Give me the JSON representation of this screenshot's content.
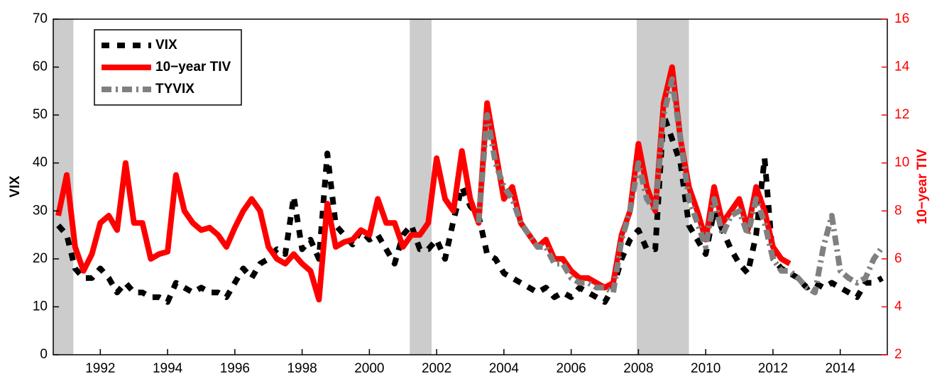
{
  "chart_data": {
    "type": "line",
    "ylabel": "VIX",
    "y2label": "10−year TIV",
    "x": [
      1990.75,
      1991,
      1991.25,
      1991.5,
      1991.75,
      1992,
      1992.25,
      1992.5,
      1992.75,
      1993,
      1993.25,
      1993.5,
      1993.75,
      1994,
      1994.25,
      1994.5,
      1994.75,
      1995,
      1995.25,
      1995.5,
      1995.75,
      1996,
      1996.25,
      1996.5,
      1996.75,
      1997,
      1997.25,
      1997.5,
      1997.75,
      1998,
      1998.25,
      1998.5,
      1998.75,
      1999,
      1999.25,
      1999.5,
      1999.75,
      2000,
      2000.25,
      2000.5,
      2000.75,
      2001,
      2001.25,
      2001.5,
      2001.75,
      2002,
      2002.25,
      2002.5,
      2002.75,
      2003,
      2003.25,
      2003.5,
      2003.75,
      2004,
      2004.25,
      2004.5,
      2004.75,
      2005,
      2005.25,
      2005.5,
      2005.75,
      2006,
      2006.25,
      2006.5,
      2006.75,
      2007,
      2007.25,
      2007.5,
      2007.75,
      2008,
      2008.25,
      2008.5,
      2008.75,
      2009,
      2009.25,
      2009.5,
      2009.75,
      2010,
      2010.25,
      2010.5,
      2010.75,
      2011,
      2011.25,
      2011.5,
      2011.75,
      2012,
      2012.25,
      2012.5,
      2012.75,
      2013,
      2013.25,
      2013.5,
      2013.75,
      2014,
      2014.25,
      2014.5,
      2014.75,
      2015,
      2015.25
    ],
    "series": [
      {
        "name": "VIX",
        "color": "#000000",
        "style": "dashed",
        "axis": "y",
        "values": [
          27,
          25,
          18,
          16,
          16,
          18,
          16,
          13,
          15,
          13,
          13,
          12,
          12,
          11,
          15,
          14,
          13,
          14,
          13,
          13,
          12,
          15,
          18,
          16,
          19,
          20,
          22,
          21,
          33,
          22,
          24,
          20,
          42,
          27,
          25,
          23,
          26,
          24,
          25,
          22,
          19,
          25,
          27,
          22,
          22,
          24,
          20,
          28,
          35,
          31,
          29,
          21,
          20,
          17,
          16,
          15,
          14,
          13,
          14,
          12,
          13,
          12,
          14,
          13,
          12,
          11,
          14,
          20,
          24,
          26,
          22,
          22,
          50,
          45,
          40,
          27,
          24,
          21,
          30,
          26,
          22,
          19,
          17,
          25,
          41,
          20,
          18,
          17,
          16,
          14,
          15,
          14,
          15,
          14,
          13,
          12,
          15,
          15,
          16
        ]
      },
      {
        "name": "10−year TIV",
        "color": "#ff0000",
        "style": "solid",
        "axis": "y2",
        "values": [
          7.8,
          9.5,
          6.5,
          5.5,
          6.2,
          7.5,
          7.8,
          7.2,
          10.0,
          7.5,
          7.5,
          6.0,
          6.2,
          6.3,
          9.5,
          8.0,
          7.5,
          7.2,
          7.3,
          7.0,
          6.5,
          7.3,
          8.0,
          8.5,
          8.0,
          6.5,
          6.0,
          5.8,
          6.2,
          5.8,
          5.5,
          4.3,
          8.3,
          6.5,
          6.7,
          6.8,
          7.2,
          7.0,
          8.5,
          7.5,
          7.5,
          6.5,
          7.0,
          7.0,
          7.5,
          10.2,
          8.5,
          8.0,
          10.5,
          8.5,
          7.5,
          12.5,
          10.5,
          8.5,
          9.0,
          7.5,
          7.0,
          6.5,
          6.8,
          6.0,
          6.0,
          5.5,
          5.2,
          5.2,
          5.0,
          4.8,
          5.0,
          7.0,
          8.0,
          10.8,
          9.0,
          8.0,
          12.5,
          14.0,
          11.0,
          9.0,
          8.0,
          6.8,
          9.0,
          7.5,
          8.0,
          8.5,
          7.2,
          9.0,
          8.0,
          6.5,
          6.0,
          5.8,
          null,
          null,
          null,
          null,
          null,
          null,
          null,
          null,
          null,
          null,
          null
        ]
      },
      {
        "name": "TYVIX",
        "color": "#808080",
        "style": "dashdot",
        "axis": "y2",
        "values": [
          null,
          null,
          null,
          null,
          null,
          null,
          null,
          null,
          null,
          null,
          null,
          null,
          null,
          null,
          null,
          null,
          null,
          null,
          null,
          null,
          null,
          null,
          null,
          null,
          null,
          null,
          null,
          null,
          null,
          null,
          null,
          null,
          null,
          null,
          null,
          null,
          null,
          null,
          null,
          null,
          null,
          null,
          null,
          null,
          null,
          null,
          null,
          null,
          null,
          null,
          7.5,
          12.0,
          10.0,
          9.0,
          8.5,
          7.5,
          7.0,
          6.5,
          6.5,
          5.8,
          5.8,
          5.2,
          5.0,
          5.0,
          4.8,
          4.8,
          4.6,
          6.8,
          8.0,
          10.0,
          8.5,
          8.0,
          12.0,
          13.5,
          11.0,
          8.5,
          7.5,
          6.5,
          8.5,
          7.0,
          7.8,
          8.0,
          7.0,
          8.5,
          7.5,
          6.0,
          5.5,
          5.5,
          5.2,
          4.8,
          4.6,
          6.5,
          7.8,
          5.5,
          5.2,
          5.0,
          5.2,
          6.0,
          6.5
        ]
      }
    ],
    "shaded": [
      [
        1990.6,
        1991.2
      ],
      [
        2001.2,
        2001.85
      ],
      [
        2007.95,
        2009.5
      ]
    ],
    "xlim": [
      1990.6,
      2015.4
    ],
    "xticks": [
      1992,
      1994,
      1996,
      1998,
      2000,
      2002,
      2004,
      2006,
      2008,
      2010,
      2012,
      2014
    ],
    "ylim": [
      0,
      70
    ],
    "yticks": [
      0,
      10,
      20,
      30,
      40,
      50,
      60,
      70
    ],
    "y2lim": [
      2,
      16
    ],
    "y2ticks": [
      2,
      4,
      6,
      8,
      10,
      12,
      14,
      16
    ],
    "legend": "upper left",
    "grid": false
  }
}
